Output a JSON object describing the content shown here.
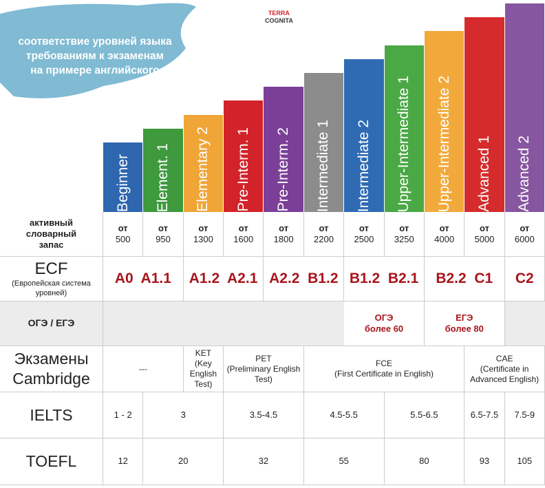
{
  "header": {
    "logo": [
      "TERRA",
      "COGNITA"
    ],
    "title": [
      "соответствие уровней языка",
      "требованиям к экзаменам",
      "на примере английского"
    ]
  },
  "levels": [
    {
      "name": "Beginner",
      "color": "#2e66b0"
    },
    {
      "name": "Element. 1",
      "color": "#3e9a3d"
    },
    {
      "name": "Elementary 2",
      "color": "#f0a537"
    },
    {
      "name": "Pre-Interm. 1",
      "color": "#d2232a"
    },
    {
      "name": "Pre-Interm. 2",
      "color": "#7b3f98"
    },
    {
      "name": "Intermediate 1",
      "color": "#8c8c8c"
    },
    {
      "name": "Intermediate 2",
      "color": "#2f6bb3"
    },
    {
      "name": "Upper-Intermediate 1",
      "color": "#4aa845"
    },
    {
      "name": "Upper-Intermediate 2",
      "color": "#f2a93b"
    },
    {
      "name": "Advanced 1",
      "color": "#d52b2c"
    },
    {
      "name": "Advanced 2",
      "color": "#8756a0"
    }
  ],
  "table": {
    "vocab": {
      "label": [
        "активный",
        "словарный",
        "запас"
      ],
      "cells": [
        [
          "от",
          "500"
        ],
        [
          "от",
          "950"
        ],
        [
          "от",
          "1300"
        ],
        [
          "от",
          "1600"
        ],
        [
          "от",
          "1800"
        ],
        [
          "от",
          "2200"
        ],
        [
          "от",
          "2500"
        ],
        [
          "от",
          "3250"
        ],
        [
          "от",
          "4000"
        ],
        [
          "от",
          "5000"
        ],
        [
          "от",
          "6000"
        ]
      ]
    },
    "ecf": {
      "label": "ECF",
      "sublabel": "(Европейская система уровней)",
      "cells": [
        "A0  A1.1",
        "A1.2  A2.1",
        "A2.2  B1.2",
        "B1.2  B2.1",
        "B2.2  C1",
        "C2"
      ]
    },
    "state": {
      "label": "ОГЭ / ЕГЭ",
      "cells": [
        [
          "ОГЭ",
          "более 60"
        ],
        [
          "ЕГЭ",
          "более 80"
        ]
      ]
    },
    "cambridge": {
      "label": [
        "Экзамены",
        "Cambridge"
      ],
      "cells": [
        [
          "---"
        ],
        [
          "KET",
          "(Key",
          "English",
          "Test)"
        ],
        [
          "PET",
          "(Preliminary English",
          "Test)"
        ],
        [
          "FCE",
          "(First Certificate in English)"
        ],
        [
          "CAE",
          "(Certificate in",
          "Advanced English)"
        ]
      ]
    },
    "ielts": {
      "label": "IELTS",
      "cells": [
        "1 - 2",
        "3",
        "3.5-4.5",
        "4.5-5.5",
        "5.5-6.5",
        "6.5-7.5",
        "7.5-9"
      ]
    },
    "toefl": {
      "label": "TOEFL",
      "cells": [
        "12",
        "20",
        "32",
        "55",
        "80",
        "93",
        "105"
      ]
    }
  }
}
